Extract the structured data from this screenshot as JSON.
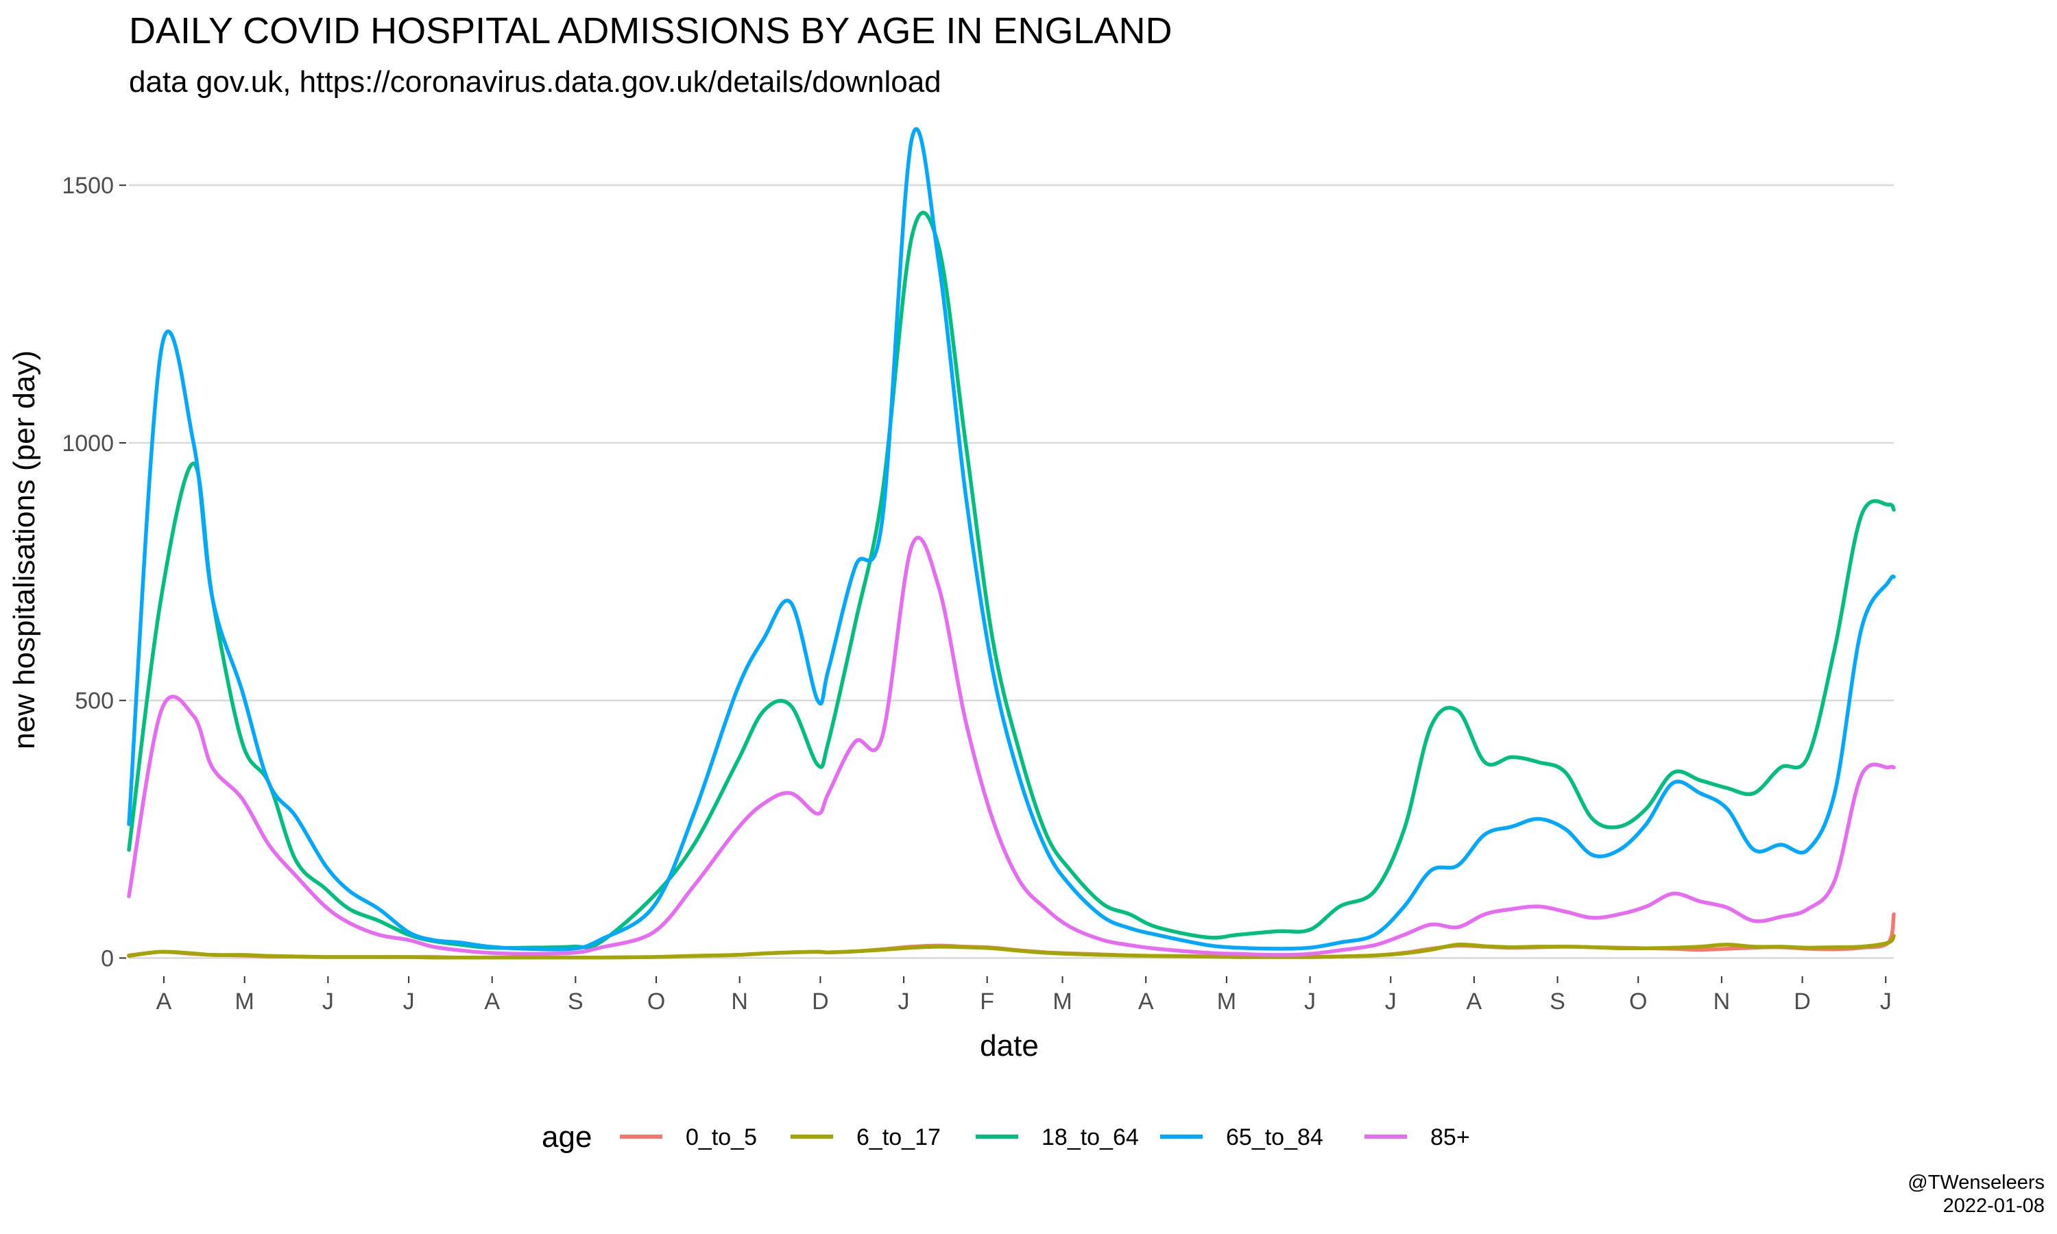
{
  "header": {
    "title": "DAILY COVID HOSPITAL ADMISSIONS BY AGE IN ENGLAND",
    "subtitle": "data gov.uk, https://coronavirus.data.gov.uk/details/download"
  },
  "credit": {
    "author": "@TWenseleers",
    "date": "2022-01-08"
  },
  "chart_data": {
    "type": "line",
    "title": "DAILY COVID HOSPITAL ADMISSIONS BY AGE IN ENGLAND",
    "subtitle": "data gov.uk, https://coronavirus.data.gov.uk/details/download",
    "xlabel": "date",
    "ylabel": "new hospitalisations (per day)",
    "xlim": [
      "2020-03-19",
      "2022-01-04"
    ],
    "ylim": [
      -30,
      1620
    ],
    "y_ticks": [
      0,
      500,
      1000,
      1500
    ],
    "x_ticks": [
      {
        "date": "2020-04-01",
        "label": "A"
      },
      {
        "date": "2020-05-01",
        "label": "M"
      },
      {
        "date": "2020-06-01",
        "label": "J"
      },
      {
        "date": "2020-07-01",
        "label": "J"
      },
      {
        "date": "2020-08-01",
        "label": "A"
      },
      {
        "date": "2020-09-01",
        "label": "S"
      },
      {
        "date": "2020-10-01",
        "label": "O"
      },
      {
        "date": "2020-11-01",
        "label": "N"
      },
      {
        "date": "2020-12-01",
        "label": "D"
      },
      {
        "date": "2021-01-01",
        "label": "J"
      },
      {
        "date": "2021-02-01",
        "label": "F"
      },
      {
        "date": "2021-03-01",
        "label": "M"
      },
      {
        "date": "2021-04-01",
        "label": "A"
      },
      {
        "date": "2021-05-01",
        "label": "M"
      },
      {
        "date": "2021-06-01",
        "label": "J"
      },
      {
        "date": "2021-07-01",
        "label": "J"
      },
      {
        "date": "2021-08-01",
        "label": "A"
      },
      {
        "date": "2021-09-01",
        "label": "S"
      },
      {
        "date": "2021-10-01",
        "label": "O"
      },
      {
        "date": "2021-11-01",
        "label": "N"
      },
      {
        "date": "2021-12-01",
        "label": "D"
      },
      {
        "date": "2022-01-01",
        "label": "J"
      }
    ],
    "grid": true,
    "legend": {
      "title": "age",
      "position": "bottom"
    },
    "x": [
      "2020-03-19",
      "2020-03-31",
      "2020-04-12",
      "2020-04-19",
      "2020-04-30",
      "2020-05-10",
      "2020-05-20",
      "2020-05-31",
      "2020-06-09",
      "2020-06-20",
      "2020-07-01",
      "2020-07-10",
      "2020-07-20",
      "2020-07-31",
      "2020-08-13",
      "2020-08-31",
      "2020-09-10",
      "2020-09-30",
      "2020-10-15",
      "2020-10-31",
      "2020-11-10",
      "2020-11-20",
      "2020-11-30",
      "2020-12-04",
      "2020-12-14",
      "2020-12-24",
      "2021-01-04",
      "2021-01-14",
      "2021-01-24",
      "2021-02-03",
      "2021-02-13",
      "2021-02-23",
      "2021-03-04",
      "2021-03-16",
      "2021-03-26",
      "2021-04-05",
      "2021-04-24",
      "2021-05-05",
      "2021-05-20",
      "2021-06-01",
      "2021-06-12",
      "2021-06-25",
      "2021-07-06",
      "2021-07-16",
      "2021-07-26",
      "2021-08-05",
      "2021-08-15",
      "2021-08-25",
      "2021-09-04",
      "2021-09-14",
      "2021-09-24",
      "2021-10-04",
      "2021-10-14",
      "2021-10-24",
      "2021-11-03",
      "2021-11-13",
      "2021-11-23",
      "2021-12-03",
      "2021-12-13",
      "2021-12-23",
      "2022-01-02",
      "2022-01-04"
    ],
    "series": [
      {
        "name": "0_to_5",
        "color": "#F8766D",
        "values": [
          5,
          12,
          8,
          6,
          5,
          3,
          3,
          2,
          2,
          2,
          2,
          2,
          1,
          1,
          1,
          1,
          1,
          2,
          4,
          6,
          9,
          11,
          12,
          11,
          13,
          17,
          22,
          24,
          22,
          20,
          15,
          11,
          9,
          7,
          5,
          4,
          3,
          2,
          2,
          2,
          3,
          5,
          10,
          18,
          24,
          22,
          20,
          21,
          22,
          21,
          20,
          19,
          18,
          16,
          18,
          20,
          21,
          18,
          17,
          20,
          30,
          85
        ]
      },
      {
        "name": "6_to_17",
        "color": "#A3A500",
        "values": [
          4,
          12,
          9,
          6,
          6,
          4,
          3,
          2,
          2,
          2,
          2,
          1,
          1,
          1,
          1,
          1,
          1,
          2,
          4,
          6,
          9,
          11,
          12,
          11,
          13,
          16,
          20,
          22,
          21,
          19,
          14,
          10,
          8,
          6,
          5,
          4,
          3,
          2,
          2,
          2,
          3,
          5,
          9,
          16,
          26,
          23,
          21,
          22,
          22,
          21,
          19,
          19,
          20,
          22,
          26,
          22,
          22,
          20,
          21,
          22,
          30,
          43
        ]
      },
      {
        "name": "18_to_64",
        "color": "#00BF7D",
        "values": [
          210,
          700,
          960,
          700,
          420,
          340,
          190,
          135,
          95,
          72,
          45,
          33,
          26,
          20,
          20,
          22,
          30,
          120,
          220,
          380,
          480,
          490,
          375,
          420,
          650,
          900,
          1400,
          1380,
          1000,
          620,
          400,
          240,
          170,
          105,
          85,
          60,
          40,
          45,
          52,
          55,
          100,
          130,
          250,
          450,
          480,
          380,
          390,
          380,
          360,
          270,
          255,
          290,
          360,
          345,
          330,
          320,
          370,
          390,
          600,
          860,
          880,
          870
        ]
      },
      {
        "name": "65_to_84",
        "color": "#00A9FF",
        "values": [
          260,
          1180,
          1000,
          700,
          520,
          340,
          275,
          180,
          130,
          95,
          50,
          35,
          30,
          22,
          18,
          18,
          35,
          100,
          280,
          520,
          620,
          690,
          500,
          560,
          760,
          850,
          1590,
          1350,
          900,
          560,
          350,
          210,
          140,
          80,
          58,
          45,
          25,
          20,
          18,
          20,
          30,
          45,
          100,
          170,
          180,
          240,
          255,
          270,
          250,
          200,
          210,
          260,
          340,
          320,
          290,
          210,
          220,
          210,
          320,
          640,
          730,
          740
        ]
      },
      {
        "name": "85+",
        "color": "#E76BF3",
        "values": [
          120,
          480,
          470,
          370,
          310,
          220,
          160,
          100,
          68,
          45,
          35,
          22,
          15,
          10,
          8,
          10,
          20,
          50,
          140,
          250,
          300,
          320,
          280,
          320,
          420,
          430,
          800,
          720,
          460,
          270,
          150,
          95,
          60,
          35,
          25,
          18,
          10,
          8,
          6,
          8,
          15,
          25,
          45,
          65,
          60,
          85,
          95,
          100,
          90,
          78,
          85,
          100,
          125,
          110,
          98,
          72,
          80,
          95,
          150,
          355,
          370,
          370
        ]
      }
    ]
  }
}
